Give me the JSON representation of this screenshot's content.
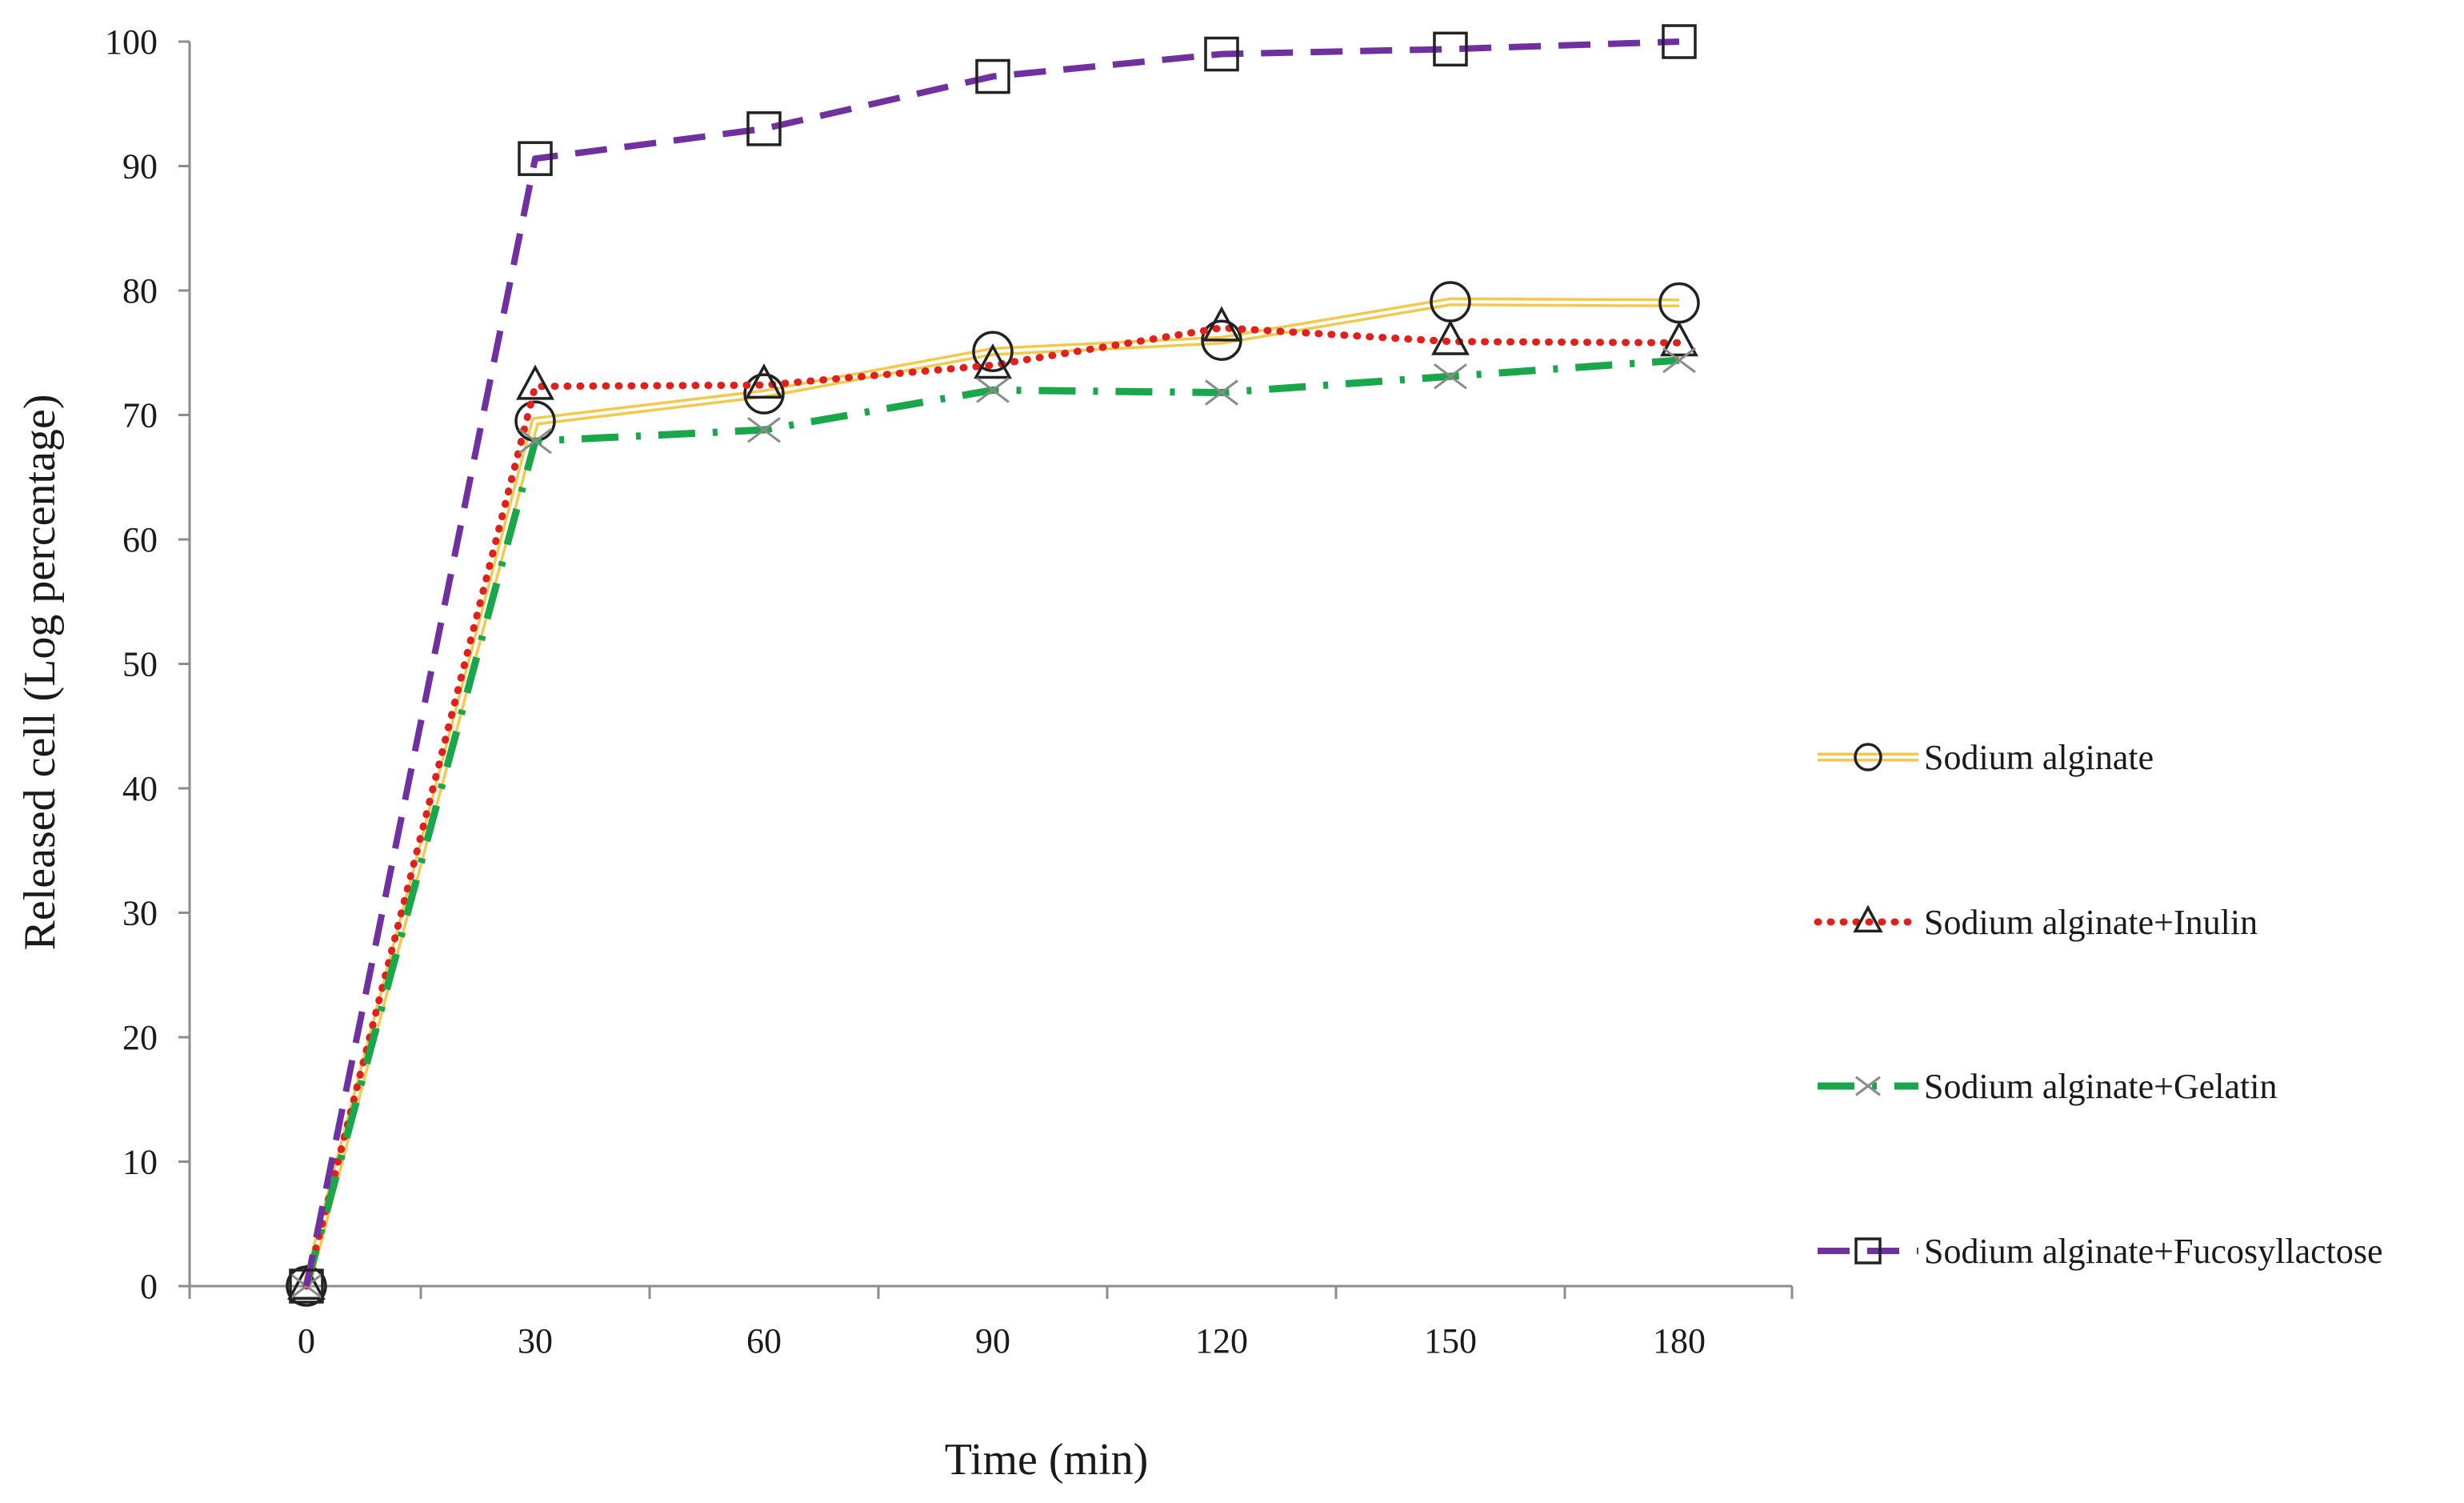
{
  "chart_data": {
    "type": "line",
    "title": "",
    "xlabel": "Time (min)",
    "ylabel": "Released cell (Log percentage)",
    "categories": [
      "0",
      "30",
      "60",
      "90",
      "120",
      "150",
      "180"
    ],
    "x": [
      0,
      30,
      60,
      90,
      120,
      150,
      180
    ],
    "ylim": [
      0,
      100
    ],
    "yticks": [
      "0",
      "10",
      "20",
      "30",
      "40",
      "50",
      "60",
      "70",
      "80",
      "90",
      "100"
    ],
    "grid": false,
    "legend_position": "right",
    "series": [
      {
        "name": "Sodium alginate",
        "values": [
          0,
          69.5,
          71.7,
          75.1,
          76.0,
          79.1,
          79.0
        ],
        "color": "#f2c94c",
        "marker": "circle",
        "line_style": "double"
      },
      {
        "name": "Sodium alginate+Inulin",
        "values": [
          0,
          72.3,
          72.4,
          74.0,
          77.0,
          75.9,
          75.8
        ],
        "color": "#e0201c",
        "marker": "triangle",
        "line_style": "dotted"
      },
      {
        "name": "Sodium alginate+Gelatin",
        "values": [
          0,
          67.9,
          68.8,
          72.0,
          71.8,
          73.1,
          74.4
        ],
        "color": "#1aa64a",
        "marker": "x",
        "line_style": "dash-dot"
      },
      {
        "name": "Sodium alginate+Fucosyllactose",
        "values": [
          0,
          90.6,
          93.0,
          97.2,
          99.0,
          99.4,
          100.0
        ],
        "color": "#7030a0",
        "marker": "square",
        "line_style": "dashed"
      }
    ]
  }
}
